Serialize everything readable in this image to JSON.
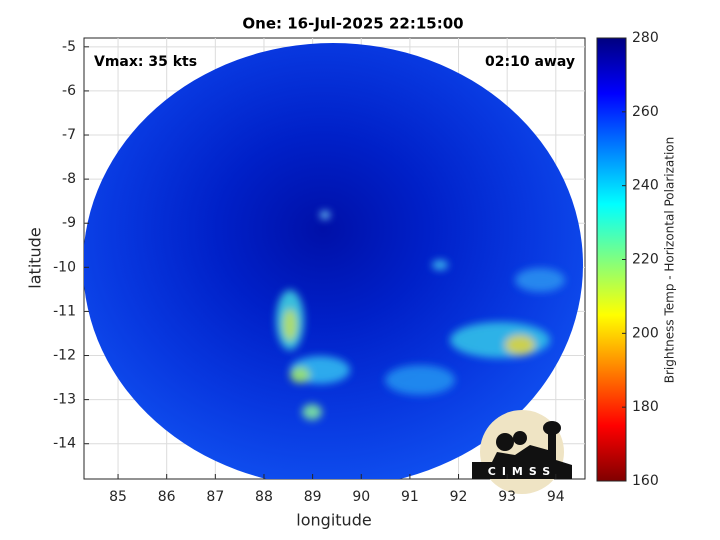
{
  "chart_data": {
    "type": "image-map",
    "title": "One: 16-Jul-2025 22:15:00",
    "xlabel": "longitude",
    "ylabel": "latitude",
    "xlim": [
      84.3,
      94.6
    ],
    "xticks": [
      85,
      86,
      87,
      88,
      89,
      90,
      91,
      92,
      93,
      94
    ],
    "ylim": [
      -14.8,
      -4.8
    ],
    "yticks": [
      -5,
      -6,
      -7,
      -8,
      -9,
      -10,
      -11,
      -12,
      -13,
      -14
    ],
    "grid": true,
    "annotations": [
      "Vmax: 35 kts",
      "02:10 away"
    ],
    "colorbar": {
      "label": "Brightness Temp - Horizontal Polarization",
      "lim": [
        160,
        280
      ],
      "ticks": [
        160,
        180,
        200,
        220,
        240,
        260,
        280
      ],
      "colormap": "jet"
    },
    "logo": "CIMSS"
  }
}
